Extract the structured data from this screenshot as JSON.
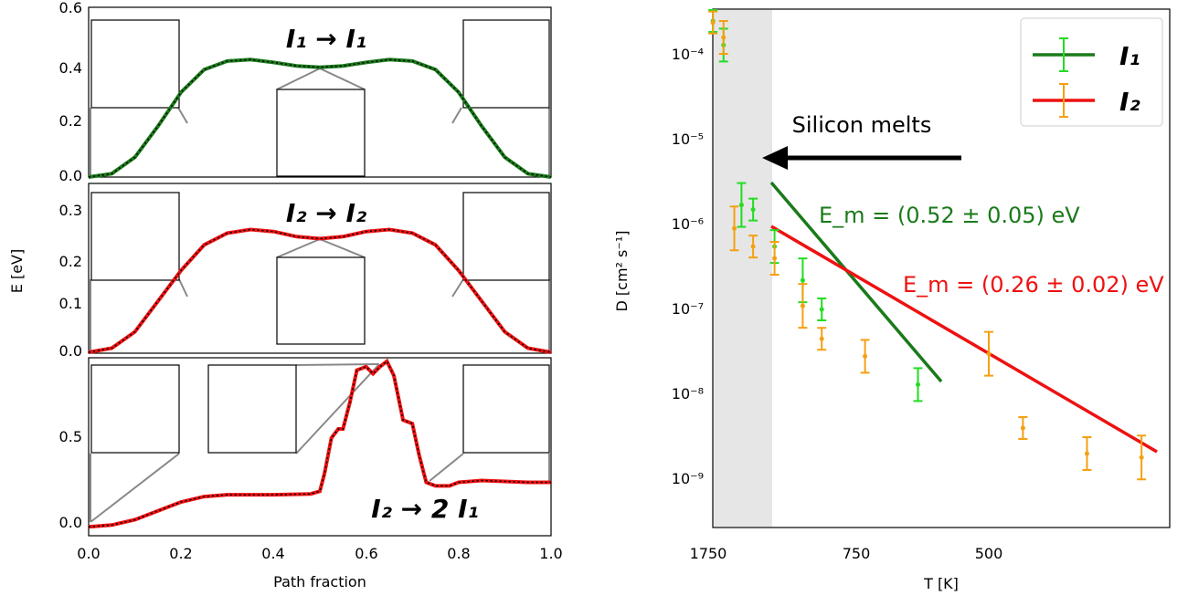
{
  "chart_data": [
    {
      "type": "line",
      "panel": "left-top",
      "title": "I₁ → I₁",
      "xlabel": "",
      "ylabel": "",
      "xlim": [
        0,
        1
      ],
      "ylim": [
        0,
        0.6
      ],
      "yticks": [
        "0.0",
        "0.2",
        "0.4",
        "0.6"
      ],
      "series": [
        {
          "color": "#1a7a1a",
          "x": [
            0,
            0.05,
            0.1,
            0.15,
            0.2,
            0.25,
            0.3,
            0.35,
            0.4,
            0.45,
            0.5,
            0.55,
            0.6,
            0.65,
            0.7,
            0.75,
            0.8,
            0.85,
            0.9,
            0.95,
            1
          ],
          "y": [
            0,
            0.012,
            0.07,
            0.18,
            0.3,
            0.38,
            0.41,
            0.415,
            0.405,
            0.393,
            0.388,
            0.393,
            0.405,
            0.415,
            0.41,
            0.38,
            0.3,
            0.18,
            0.07,
            0.012,
            0
          ]
        }
      ],
      "insets": 3
    },
    {
      "type": "line",
      "panel": "left-middle",
      "title": "I₂ → I₂",
      "xlabel": "",
      "ylabel": "E [eV]",
      "xlim": [
        0,
        1
      ],
      "ylim": [
        0,
        0.33
      ],
      "yticks": [
        "0.0",
        "0.1",
        "0.2",
        "0.3"
      ],
      "series": [
        {
          "color": "#ee1111",
          "x": [
            0,
            0.05,
            0.1,
            0.15,
            0.2,
            0.25,
            0.3,
            0.35,
            0.4,
            0.45,
            0.5,
            0.55,
            0.6,
            0.65,
            0.7,
            0.75,
            0.8,
            0.85,
            0.9,
            0.95,
            1
          ],
          "y": [
            0,
            0.008,
            0.04,
            0.1,
            0.16,
            0.21,
            0.233,
            0.24,
            0.236,
            0.226,
            0.222,
            0.226,
            0.236,
            0.24,
            0.233,
            0.21,
            0.16,
            0.1,
            0.04,
            0.008,
            0
          ]
        }
      ],
      "insets": 3
    },
    {
      "type": "line",
      "panel": "left-bottom",
      "title": "I₂ → 2 I₁",
      "xlabel": "Path fraction",
      "ylabel": "",
      "xlim": [
        0,
        1
      ],
      "ylim": [
        -0.05,
        0.95
      ],
      "xticks": [
        "0.0",
        "0.2",
        "0.4",
        "0.6",
        "0.8",
        "1.0"
      ],
      "yticks": [
        "0.0",
        "0.5"
      ],
      "series": [
        {
          "color": "#ee1111",
          "x": [
            0,
            0.05,
            0.1,
            0.15,
            0.2,
            0.25,
            0.3,
            0.4,
            0.48,
            0.5,
            0.51,
            0.525,
            0.54,
            0.55,
            0.565,
            0.58,
            0.6,
            0.615,
            0.63,
            0.645,
            0.66,
            0.68,
            0.7,
            0.715,
            0.73,
            0.75,
            0.78,
            0.8,
            0.85,
            0.9,
            0.95,
            1
          ],
          "y": [
            0,
            0.01,
            0.04,
            0.09,
            0.14,
            0.17,
            0.18,
            0.18,
            0.185,
            0.2,
            0.3,
            0.5,
            0.55,
            0.55,
            0.7,
            0.88,
            0.9,
            0.86,
            0.9,
            0.93,
            0.85,
            0.6,
            0.58,
            0.4,
            0.25,
            0.23,
            0.23,
            0.25,
            0.26,
            0.255,
            0.25,
            0.25
          ]
        }
      ],
      "insets": 4
    },
    {
      "type": "line",
      "panel": "right",
      "xlabel": "T [K]",
      "ylabel": "D [cm² s⁻¹]",
      "xscale": "reciprocal",
      "yscale": "log",
      "xticks": [
        "1750",
        "750",
        "500"
      ],
      "yticks": [
        "10⁻⁹",
        "10⁻⁸",
        "10⁻⁷",
        "10⁻⁶",
        "10⁻⁵",
        "10⁻⁴"
      ],
      "shaded_region": "Silicon melts",
      "legend": {
        "position": "top-right",
        "entries": [
          "I₁",
          "I₂"
        ]
      },
      "annotations": [
        {
          "text": "E_m = (0.52 ± 0.05) eV",
          "color": "#1a7a1a"
        },
        {
          "text": "E_m = (0.26 ± 0.02) eV",
          "color": "#ee1111"
        }
      ],
      "series": [
        {
          "name": "I₁",
          "color": "#22dd22",
          "fit_color": "#1a7a1a",
          "x": [
            1680,
            1540,
            1350,
            1250,
            1100,
            950,
            870,
            610
          ],
          "y": [
            0.00025,
            0.00013,
            1.7e-06,
            1.5e-06,
            5.5e-07,
            2.2e-07,
            1e-07,
            1.3e-08
          ]
        },
        {
          "name": "I₂",
          "color": "#f5a012",
          "fit_color": "#ee1111",
          "x": [
            1680,
            1540,
            1420,
            1250,
            1100,
            950,
            870,
            730,
            500,
            460,
            400,
            360
          ],
          "y": [
            0.00024,
            0.00016,
            9e-07,
            5.5e-07,
            4e-07,
            1.1e-07,
            4.5e-08,
            2.8e-08,
            3e-08,
            4e-09,
            2e-09,
            1.8e-09
          ]
        }
      ]
    }
  ]
}
